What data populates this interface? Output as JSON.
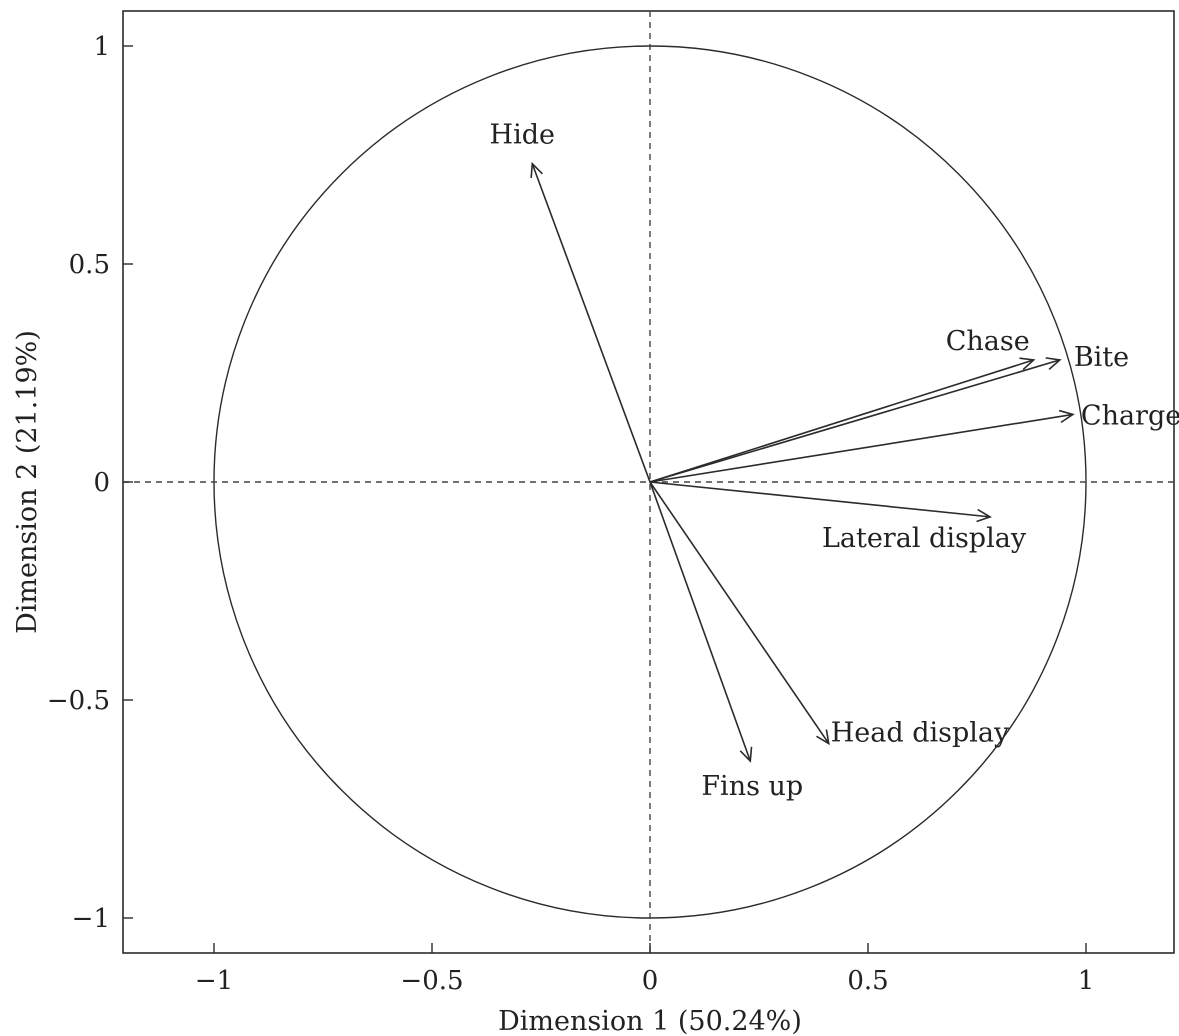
{
  "chart_data": {
    "type": "scatter",
    "subtype": "pca-correlation-circle",
    "title": "",
    "xlabel": "Dimension 1 (50.24%)",
    "ylabel": "Dimension 2 (21.19%)",
    "xlim": [
      -1.2,
      1.2
    ],
    "ylim": [
      -1.08,
      1.08
    ],
    "xticks": [
      -1,
      -0.5,
      0,
      0.5,
      1
    ],
    "xtick_labels": [
      "−1",
      "−0.5",
      "0",
      "0.5",
      "1"
    ],
    "yticks": [
      -1,
      -0.5,
      0,
      0.5,
      1
    ],
    "ytick_labels": [
      "−1",
      "−0.5",
      "0",
      "0.5",
      "1"
    ],
    "unit_circle": true,
    "reference_lines": "dashed at x=0 and y=0",
    "grid": false,
    "legend": "none",
    "vectors": [
      {
        "name": "Hide",
        "x": -0.27,
        "y": 0.73
      },
      {
        "name": "Chase",
        "x": 0.88,
        "y": 0.28
      },
      {
        "name": "Bite",
        "x": 0.94,
        "y": 0.28
      },
      {
        "name": "Charge",
        "x": 0.97,
        "y": 0.155
      },
      {
        "name": "Lateral display",
        "x": 0.78,
        "y": -0.08
      },
      {
        "name": "Head display",
        "x": 0.41,
        "y": -0.6
      },
      {
        "name": "Fins up",
        "x": 0.23,
        "y": -0.64
      }
    ]
  }
}
